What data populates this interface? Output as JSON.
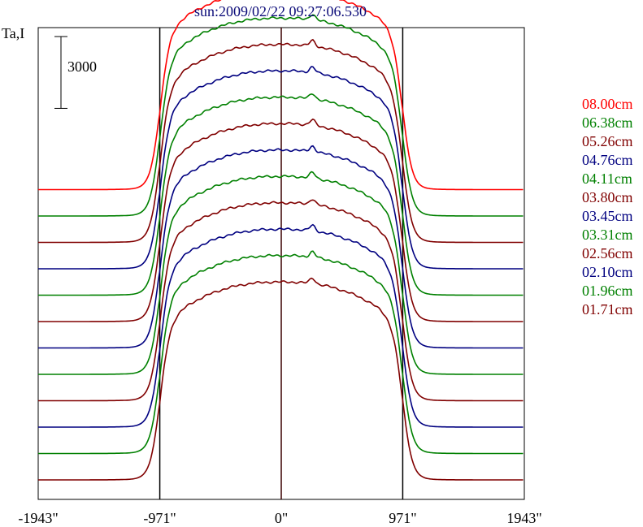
{
  "chart_data": {
    "type": "line",
    "title": "sun:2009/02/22 09:27:06.530",
    "ylabel": "Ta,I",
    "scale_bar": {
      "value": 3000,
      "label": "3000"
    },
    "xlim": [
      -1943,
      1943
    ],
    "x_ticks": [
      -1943,
      -971,
      0,
      971,
      1943
    ],
    "x_tick_labels": [
      "-1943\"",
      "-971\"",
      "0\"",
      "971\"",
      "1943\""
    ],
    "reference_lines_x": [
      -971,
      0,
      971
    ],
    "limb_x": 971,
    "plateau_height": 10500,
    "vertical_offset_step": 1400,
    "grid": false,
    "legend_position": "right",
    "series": [
      {
        "name": "08.00cm",
        "color": "#ff0000",
        "baseline": 15400,
        "disk_level": 10500
      },
      {
        "name": "06.38cm",
        "color": "#008000",
        "baseline": 14000,
        "disk_level": 10500
      },
      {
        "name": "05.26cm",
        "color": "#800000",
        "baseline": 12600,
        "disk_level": 10500
      },
      {
        "name": "04.76cm",
        "color": "#000080",
        "baseline": 11200,
        "disk_level": 10500
      },
      {
        "name": "04.11cm",
        "color": "#008000",
        "baseline": 9800,
        "disk_level": 10500
      },
      {
        "name": "03.80cm",
        "color": "#800000",
        "baseline": 8400,
        "disk_level": 10500
      },
      {
        "name": "03.45cm",
        "color": "#000080",
        "baseline": 7000,
        "disk_level": 10500
      },
      {
        "name": "03.31cm",
        "color": "#008000",
        "baseline": 5600,
        "disk_level": 10500
      },
      {
        "name": "02.56cm",
        "color": "#800000",
        "baseline": 4200,
        "disk_level": 10500
      },
      {
        "name": "02.10cm",
        "color": "#000080",
        "baseline": 2800,
        "disk_level": 10500
      },
      {
        "name": "01.96cm",
        "color": "#008000",
        "baseline": 1400,
        "disk_level": 10500
      },
      {
        "name": "01.71cm",
        "color": "#800000",
        "baseline": 0,
        "disk_level": 10500
      }
    ]
  }
}
